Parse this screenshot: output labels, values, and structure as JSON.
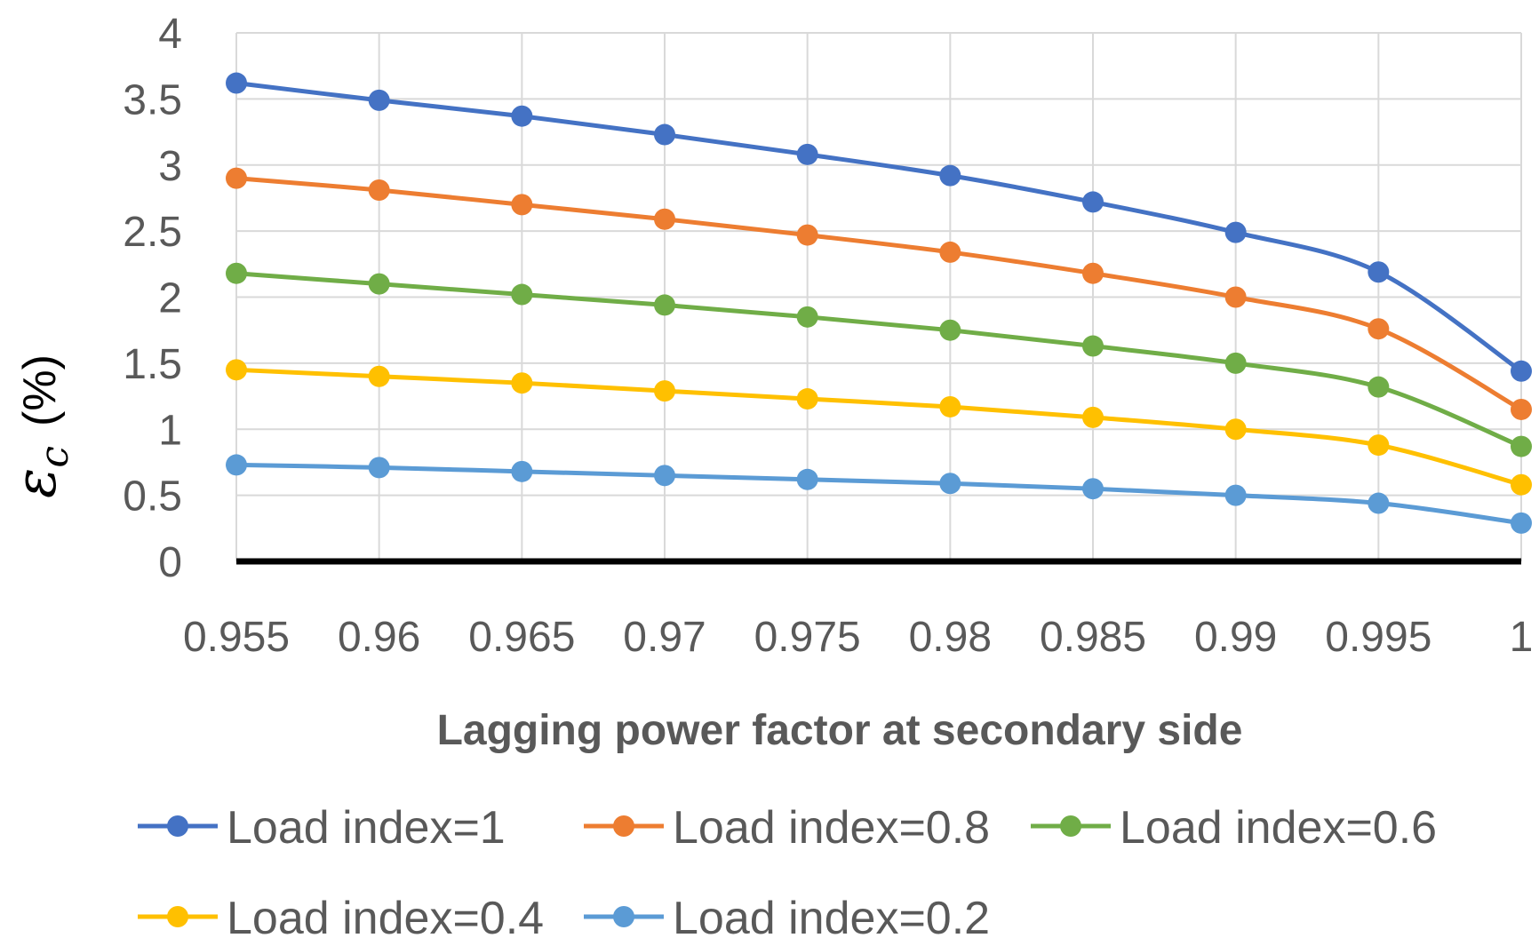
{
  "chart_data": {
    "type": "line",
    "title": "",
    "xlabel": "Lagging power factor at secondary side",
    "ylabel": {
      "symbol": "ε",
      "subscript": "c",
      "unit": "(%)"
    },
    "categories": [
      "0.955",
      "0.96",
      "0.965",
      "0.97",
      "0.975",
      "0.98",
      "0.985",
      "0.99",
      "0.995",
      "1"
    ],
    "yticks": [
      "0",
      "0.5",
      "1",
      "1.5",
      "2",
      "2.5",
      "3",
      "3.5",
      "4"
    ],
    "ylim": [
      0,
      4
    ],
    "grid": true,
    "legend_position": "bottom",
    "series": [
      {
        "name": "Load index=1",
        "color": "#4472C4",
        "values": [
          3.62,
          3.49,
          3.37,
          3.23,
          3.08,
          2.92,
          2.72,
          2.49,
          2.19,
          1.44
        ]
      },
      {
        "name": "Load index=0.8",
        "color": "#ED7D31",
        "values": [
          2.9,
          2.81,
          2.7,
          2.59,
          2.47,
          2.34,
          2.18,
          2.0,
          1.76,
          1.15
        ]
      },
      {
        "name": "Load index=0.6",
        "color": "#70AD47",
        "values": [
          2.18,
          2.1,
          2.02,
          1.94,
          1.85,
          1.75,
          1.63,
          1.5,
          1.32,
          0.87
        ]
      },
      {
        "name": "Load index=0.4",
        "color": "#FFC000",
        "values": [
          1.45,
          1.4,
          1.35,
          1.29,
          1.23,
          1.17,
          1.09,
          1.0,
          0.88,
          0.58
        ]
      },
      {
        "name": "Load index=0.2",
        "color": "#5B9BD5",
        "values": [
          0.73,
          0.71,
          0.68,
          0.65,
          0.62,
          0.59,
          0.55,
          0.5,
          0.44,
          0.29
        ]
      }
    ]
  }
}
